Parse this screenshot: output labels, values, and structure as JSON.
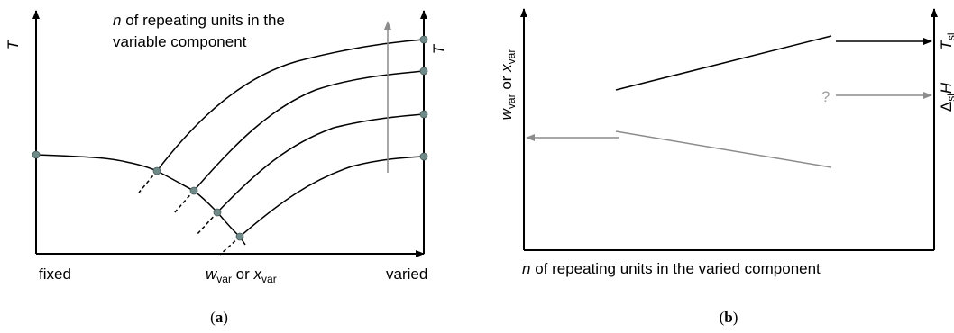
{
  "panel_a": {
    "y_axis_left": "T",
    "y_axis_right": "T",
    "annotation_line1_italic": "n",
    "annotation_line1_rest": " of repeating units in the",
    "annotation_line2": "variable component",
    "x_left": "fixed",
    "x_right": "varied",
    "x_mid_w": "w",
    "x_mid_sub1": "var",
    "x_mid_or": " or ",
    "x_mid_x": "x",
    "x_mid_sub2": "var",
    "caption_open": "(",
    "caption_letter": "a",
    "caption_close": ")"
  },
  "panel_b": {
    "y_axis_w": "w",
    "y_axis_sub1": "var",
    "y_axis_or": " or ",
    "y_axis_x": "x",
    "y_axis_sub2": "var",
    "right_top_T": "T",
    "right_top_sub": "sl",
    "right_mid_delta": "Δ",
    "right_mid_sub": "sl",
    "right_mid_H": "H",
    "question_mark": "?",
    "x_label_italic": "n",
    "x_label_rest": " of repeating units in the varied component",
    "caption_open": "(",
    "caption_letter": "b",
    "caption_close": ")"
  },
  "colors": {
    "curve": "#000000",
    "dot": "#6f8a88",
    "gray_arrow": "#8c8c8c",
    "question": "#a8a8a8"
  }
}
